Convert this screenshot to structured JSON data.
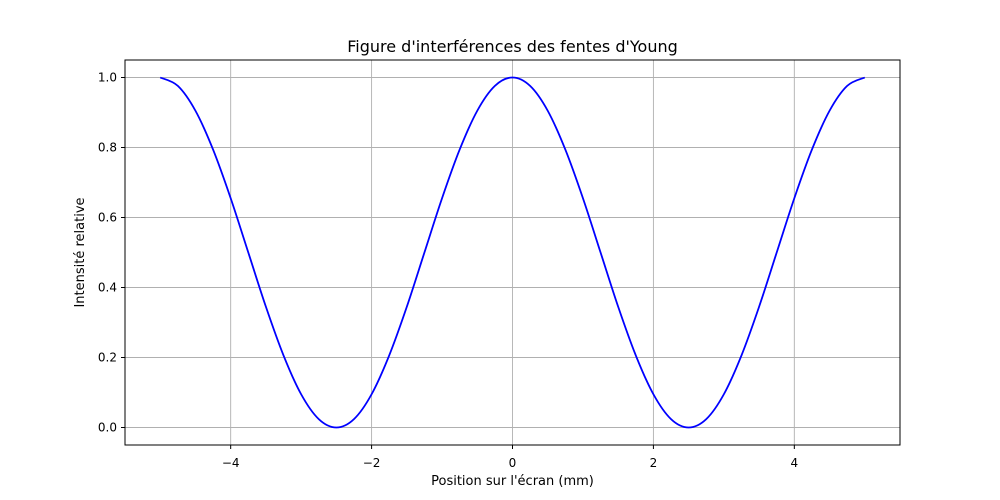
{
  "chart_data": {
    "type": "line",
    "title": "Figure d'interférences des fentes d'Young",
    "xlabel": "Position sur l'écran (mm)",
    "ylabel": "Intensité relative",
    "xlim": [
      -5.5,
      5.5
    ],
    "ylim": [
      -0.05,
      1.05
    ],
    "xticks": [
      -4,
      -2,
      0,
      2,
      4
    ],
    "xtick_labels": [
      "−4",
      "−2",
      "0",
      "2",
      "4"
    ],
    "yticks": [
      0.0,
      0.2,
      0.4,
      0.6,
      0.8,
      1.0
    ],
    "ytick_labels": [
      "0.0",
      "0.2",
      "0.4",
      "0.6",
      "0.8",
      "1.0"
    ],
    "grid": true,
    "series": [
      {
        "color": "#0000ff",
        "x": [
          -5.0,
          -4.75,
          -4.5,
          -4.25,
          -4.0,
          -3.75,
          -3.5,
          -3.25,
          -3.0,
          -2.75,
          -2.5,
          -2.25,
          -2.0,
          -1.75,
          -1.5,
          -1.25,
          -1.0,
          -0.75,
          -0.5,
          -0.25,
          0.0,
          0.25,
          0.5,
          0.75,
          1.0,
          1.25,
          1.5,
          1.75,
          2.0,
          2.25,
          2.5,
          2.75,
          3.0,
          3.25,
          3.5,
          3.75,
          4.0,
          4.25,
          4.5,
          4.75,
          5.0
        ],
        "y": [
          1.0,
          0.976,
          0.905,
          0.794,
          0.655,
          0.5,
          0.345,
          0.206,
          0.095,
          0.024,
          0.0,
          0.024,
          0.095,
          0.206,
          0.345,
          0.5,
          0.655,
          0.794,
          0.905,
          0.976,
          1.0,
          0.976,
          0.905,
          0.794,
          0.655,
          0.5,
          0.345,
          0.206,
          0.095,
          0.024,
          0.0,
          0.024,
          0.095,
          0.206,
          0.345,
          0.5,
          0.655,
          0.794,
          0.905,
          0.976,
          1.0
        ]
      }
    ]
  }
}
